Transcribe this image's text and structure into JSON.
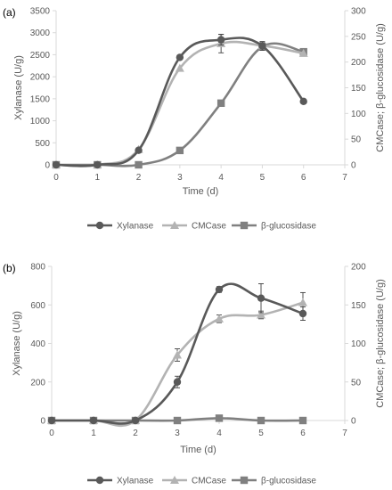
{
  "colors": {
    "xylanase": "#595959",
    "cmcase": "#b3b3b3",
    "bglucosidase": "#808080",
    "axis": "#d9d9d9"
  },
  "chart_data": [
    {
      "type": "line",
      "panel_label": "(a)",
      "xlabel": "Time (d)",
      "ylabel": "Xylanase (U/g)",
      "y2label": "CMCase; β-glucosidase (U/g)",
      "xlim": [
        0,
        7
      ],
      "ylim": [
        0,
        3500
      ],
      "y2lim": [
        0,
        300
      ],
      "xticks": [
        0,
        1,
        2,
        3,
        4,
        5,
        6,
        7
      ],
      "yticks": [
        0,
        500,
        1000,
        1500,
        2000,
        2500,
        3000,
        3500
      ],
      "y2ticks": [
        0,
        50,
        100,
        150,
        200,
        250,
        300
      ],
      "x": [
        0,
        1,
        2,
        3,
        4,
        5,
        6
      ],
      "series": [
        {
          "name": "Xylanase",
          "axis": "left",
          "marker": "circle",
          "values": [
            0,
            0,
            330,
            2440,
            2840,
            2700,
            1440
          ],
          "err": [
            0,
            0,
            0,
            0,
            120,
            100,
            0
          ]
        },
        {
          "name": "CMCase",
          "axis": "right",
          "marker": "triangle",
          "values": [
            0,
            0,
            30,
            188,
            236,
            232,
            217
          ],
          "err": [
            0,
            0,
            0,
            0,
            18,
            6,
            0
          ]
        },
        {
          "name": "β-glucosidase",
          "axis": "right",
          "marker": "square",
          "values": [
            0,
            0,
            0,
            28,
            120,
            230,
            220
          ],
          "err": [
            0,
            0,
            0,
            0,
            0,
            0,
            0
          ]
        }
      ],
      "legend_position": "bottom"
    },
    {
      "type": "line",
      "panel_label": "(b)",
      "xlabel": "Time (d)",
      "ylabel": "Xylanase (U/g)",
      "y2label": "CMCase; β-glucosidase (U/g)",
      "xlim": [
        0,
        7
      ],
      "ylim": [
        0,
        800
      ],
      "y2lim": [
        0,
        200
      ],
      "xticks": [
        0,
        1,
        2,
        3,
        4,
        5,
        6,
        7
      ],
      "yticks": [
        0,
        200,
        400,
        600,
        800
      ],
      "y2ticks": [
        0,
        50,
        100,
        150,
        200
      ],
      "x": [
        0,
        1,
        2,
        3,
        4,
        5,
        6
      ],
      "series": [
        {
          "name": "Xylanase",
          "axis": "left",
          "marker": "circle",
          "values": [
            0,
            0,
            0,
            200,
            680,
            635,
            555
          ],
          "err": [
            0,
            0,
            0,
            30,
            15,
            75,
            35
          ]
        },
        {
          "name": "CMCase",
          "axis": "right",
          "marker": "triangle",
          "values": [
            0,
            0,
            0,
            85,
            132,
            137,
            153
          ],
          "err": [
            0,
            0,
            0,
            8,
            5,
            5,
            13
          ]
        },
        {
          "name": "β-glucosidase",
          "axis": "right",
          "marker": "square",
          "values": [
            0,
            0,
            0,
            0,
            3,
            0,
            0
          ],
          "err": [
            0,
            0,
            0,
            0,
            0,
            0,
            0
          ]
        }
      ],
      "legend_position": "bottom"
    }
  ]
}
